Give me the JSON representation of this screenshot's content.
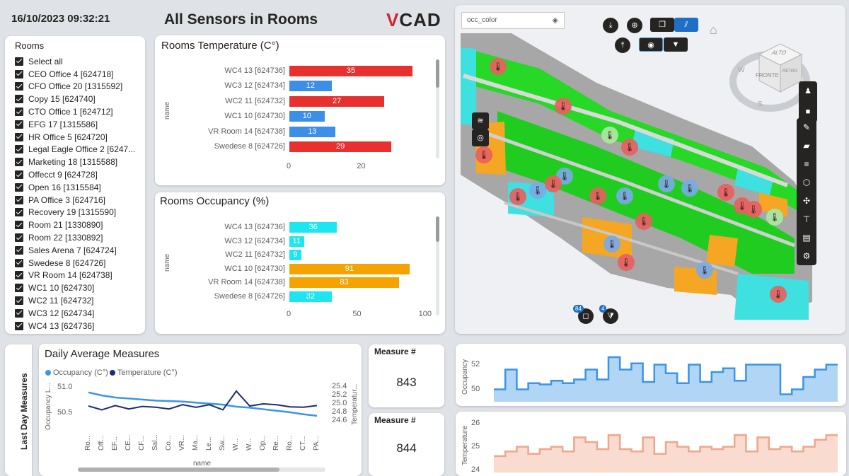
{
  "header": {
    "datetime": "16/10/2023 09:32:21",
    "title": "All Sensors in Rooms",
    "logo_v": "V",
    "logo_rest": "CAD"
  },
  "slicer": {
    "title": "Rooms",
    "items": [
      "Select all",
      "CEO Office 4 [624718]",
      "CFO Office 20 [1315592]",
      "Copy 15 [624740]",
      "CTO Office 1 [624712]",
      "EFG 17 [1315586]",
      "HR Office 5 [624720]",
      "Legal Eagle Office 2 [6247...",
      "Marketing 18 [1315588]",
      "Offecct 9 [624728]",
      "Open 16 [1315584]",
      "PA Office 3 [624716]",
      "Recovery 19 [1315590]",
      "Room 21 [1330890]",
      "Room 22 [1330892]",
      "Sales Arena 7 [624724]",
      "Swedese 8 [624726]",
      "VR Room 14 [624738]",
      "WC1 10 [624730]",
      "WC2 11 [624732]",
      "WC3 12 [624734]",
      "WC4 13 [624736]"
    ]
  },
  "temp_chart": {
    "title": "Rooms Temperature (C°)",
    "axis_name": "name",
    "ticks": [
      "0",
      "20"
    ],
    "color_high": "#e8302f",
    "color_low": "#3c8ee6"
  },
  "occ_chart": {
    "title": "Rooms Occupancy (%)",
    "axis_name": "name",
    "ticks": [
      "0",
      "50",
      "100"
    ],
    "color_high": "#f5a300",
    "color_low": "#1ee6f0"
  },
  "viewer": {
    "layer": "occ_color",
    "badge_left": "84",
    "badge_right": "4",
    "compass": [
      "ALTO",
      "FRONTE",
      "RETRO",
      "W",
      "S"
    ]
  },
  "bottom": {
    "side_label": "Last Day Measures",
    "daily_title": "Daily Average Measures",
    "legend_occ": "Occupancy (C°)",
    "legend_temp": "Temperature (C°)",
    "y_left_name": "Occupancy L...",
    "y_right_name": "Temperatur...",
    "x_name": "name",
    "y_left_ticks": [
      "51.0",
      "50.5"
    ],
    "y_right_ticks": [
      "25.4",
      "25.2",
      "25.0",
      "24.8",
      "24.6"
    ],
    "x_labels": [
      "Ro...",
      "Off...",
      "EF...",
      "CE...",
      "CF...",
      "Sal...",
      "Co...",
      "VR...",
      "Ma...",
      "Le...",
      "Sw...",
      "W...",
      "W...",
      "Op...",
      "Re...",
      "Ro...",
      "CT...",
      "PA..."
    ],
    "occ_color": "#3a95e6",
    "temp_color": "#1c2a7a"
  },
  "kpi1": {
    "title": "Measure #",
    "value": "843"
  },
  "kpi2": {
    "title": "Measure #",
    "value": "844"
  },
  "spark_occ": {
    "axis_name": "Occupancy",
    "ticks": [
      "52",
      "50"
    ],
    "color": "#3a95e6"
  },
  "spark_temp": {
    "axis_name": "Temperature",
    "ticks": [
      "26",
      "25",
      "24"
    ],
    "color": "#f0a68a"
  },
  "chart_data": [
    {
      "type": "bar",
      "title": "Rooms Temperature (C°)",
      "ylabel": "name",
      "categories": [
        "WC4 13 [624736]",
        "WC3 12 [624734]",
        "WC2 11 [624732]",
        "WC1 10 [624730]",
        "VR Room 14 [624738]",
        "Swedese 8 [624726]"
      ],
      "values": [
        35,
        12,
        27,
        10,
        13,
        29
      ],
      "xlim": [
        0,
        35
      ]
    },
    {
      "type": "bar",
      "title": "Rooms Occupancy (%)",
      "ylabel": "name",
      "categories": [
        "WC4 13 [624736]",
        "WC3 12 [624734]",
        "WC2 11 [624732]",
        "WC1 10 [624730]",
        "VR Room 14 [624738]",
        "Swedese 8 [624726]"
      ],
      "values": [
        36,
        11,
        9,
        91,
        83,
        32
      ],
      "xlim": [
        0,
        105
      ]
    },
    {
      "type": "line",
      "title": "Daily Average Measures",
      "xlabel": "name",
      "categories": [
        "Ro...",
        "Off...",
        "EF...",
        "CE...",
        "CF...",
        "Sal...",
        "Co...",
        "VR...",
        "Ma...",
        "Le...",
        "Sw...",
        "W...",
        "W...",
        "Op...",
        "Re...",
        "Ro...",
        "CT...",
        "PA..."
      ],
      "series": [
        {
          "name": "Occupancy (C°)",
          "axis": "left",
          "values": [
            50.9,
            50.84,
            50.8,
            50.78,
            50.76,
            50.74,
            50.73,
            50.72,
            50.7,
            50.68,
            50.66,
            50.62,
            50.6,
            50.57,
            50.54,
            50.51,
            50.47,
            50.44
          ]
        },
        {
          "name": "Temperature (C°)",
          "axis": "right",
          "values": [
            24.95,
            24.86,
            24.96,
            24.88,
            24.94,
            24.92,
            24.88,
            24.98,
            24.92,
            24.98,
            24.86,
            25.3,
            24.95,
            25.0,
            24.98,
            24.93,
            24.92,
            24.96
          ]
        }
      ],
      "ylim_left": [
        50.3,
        51.05
      ],
      "ylim_right": [
        24.55,
        25.45
      ]
    },
    {
      "type": "area",
      "ylabel": "Occupancy",
      "values": [
        50.0,
        51.6,
        50.0,
        50.5,
        50.4,
        50.7,
        50.5,
        50.8,
        51.6,
        50.8,
        52.6,
        51.6,
        52.1,
        50.6,
        52.0,
        51.3,
        50.5,
        52.0,
        50.6,
        51.4,
        51.7,
        50.7,
        52.0,
        52.0,
        52.0,
        49.6,
        50.0,
        51.0,
        51.6,
        52.0
      ],
      "ylim": [
        49.0,
        53.0
      ]
    },
    {
      "type": "area",
      "ylabel": "Temperature",
      "values": [
        24.6,
        24.8,
        25.0,
        24.7,
        24.9,
        25.0,
        24.8,
        25.4,
        25.2,
        24.9,
        25.5,
        24.9,
        24.8,
        25.4,
        24.7,
        25.2,
        25.0,
        24.8,
        25.0,
        24.9,
        25.0,
        25.5,
        24.8,
        25.4,
        24.9,
        25.0,
        24.8,
        25.0,
        25.3,
        25.5
      ],
      "ylim": [
        23.9,
        26.2
      ]
    }
  ]
}
